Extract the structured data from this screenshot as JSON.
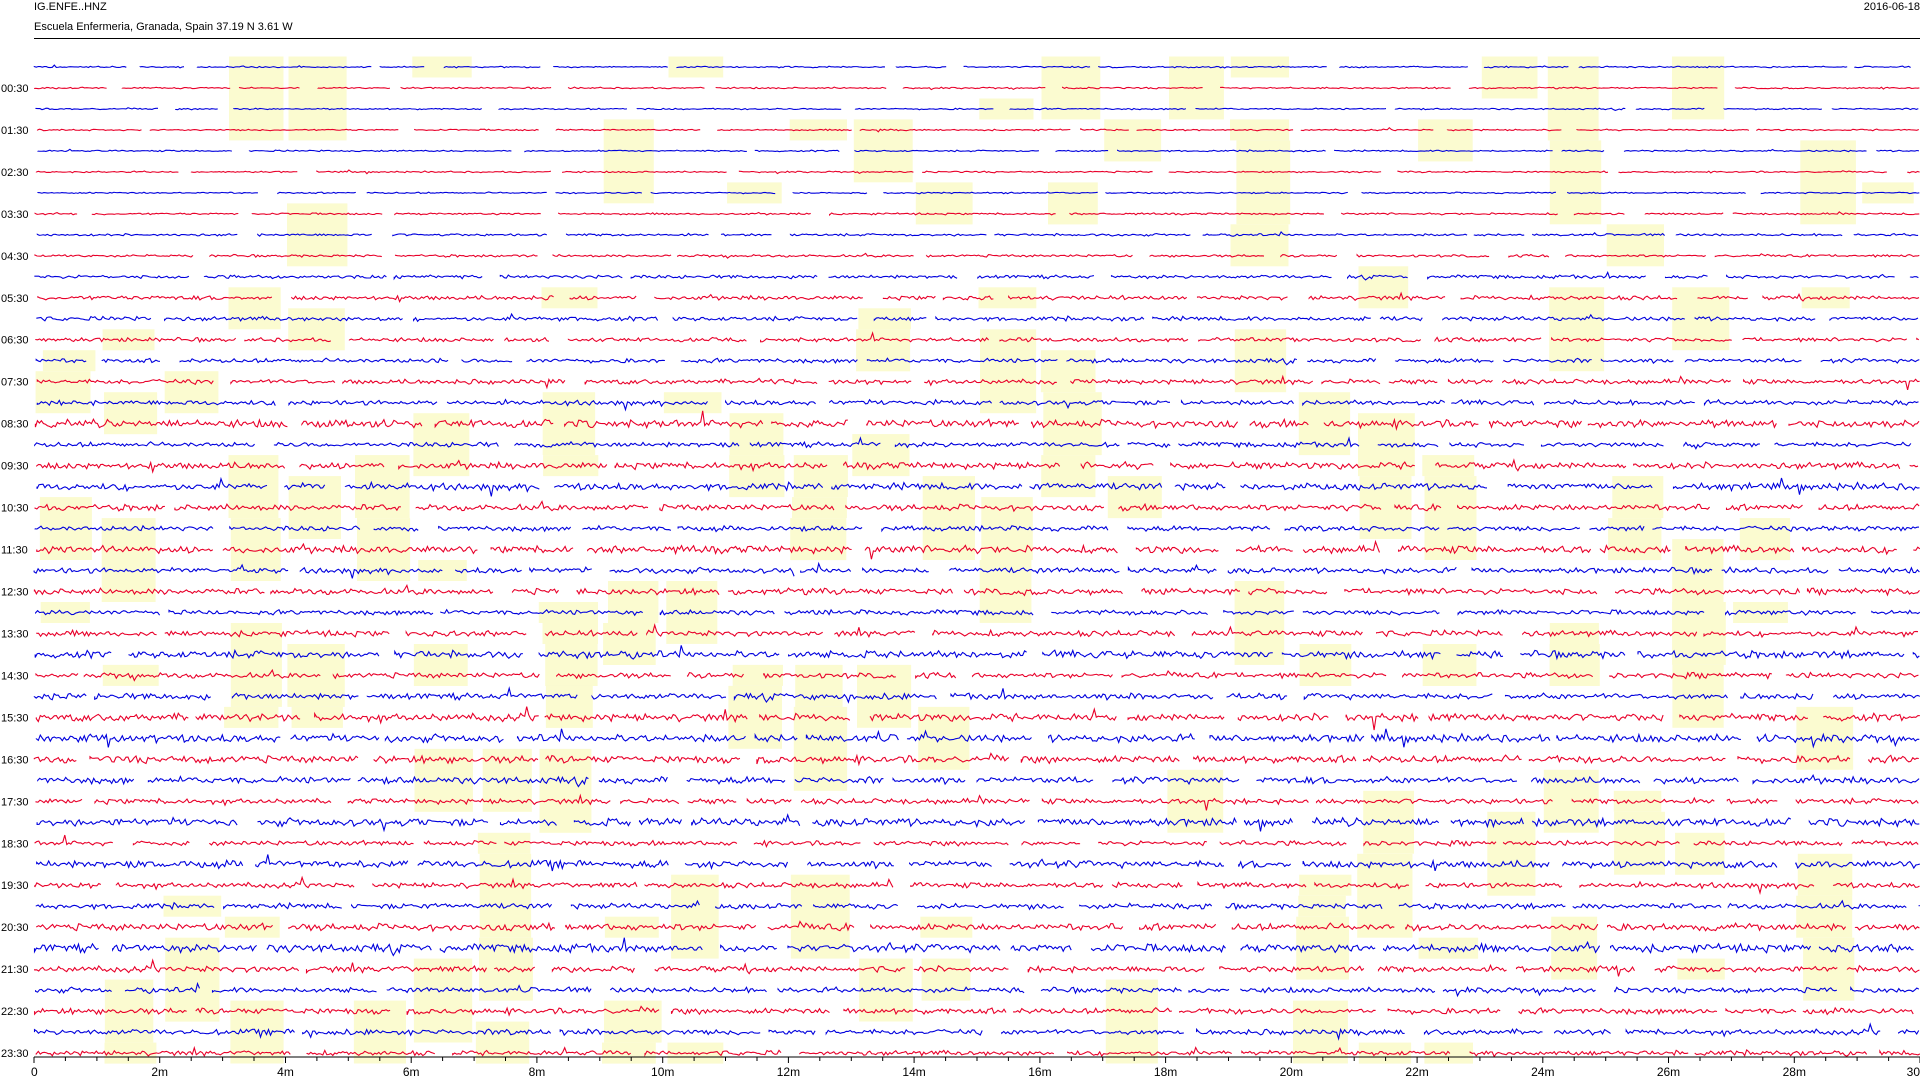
{
  "header": {
    "station": "IG.ENFE..HNZ",
    "location": "Escuela Enfermeria, Granada, Spain  37.19 N 3.61 W",
    "date": "2016-06-18"
  },
  "chart_data": {
    "type": "line",
    "title": "IG.ENFE..HNZ",
    "subtitle": "Escuela Enfermeria, Granada, Spain  37.19 N 3.61 W",
    "date": "2016-06-18",
    "row_labels": [
      "00:30",
      "01:30",
      "02:30",
      "03:30",
      "04:30",
      "05:30",
      "06:30",
      "07:30",
      "08:30",
      "09:30",
      "10:30",
      "11:30",
      "12:30",
      "13:30",
      "14:30",
      "15:30",
      "16:30",
      "17:30",
      "18:30",
      "19:30",
      "20:30",
      "21:30",
      "22:30",
      "23:30"
    ],
    "rows_per_hour": 2,
    "minutes_per_row": 30,
    "x_tick_labels": [
      "0",
      "2m",
      "4m",
      "6m",
      "8m",
      "10m",
      "12m",
      "14m",
      "16m",
      "18m",
      "20m",
      "22m",
      "24m",
      "26m",
      "28m",
      "30"
    ],
    "xlim": [
      0,
      30
    ],
    "trace_colors": [
      "#0000dd",
      "#e8002a"
    ],
    "gap_color": "#fbfbd0",
    "grid": false
  }
}
